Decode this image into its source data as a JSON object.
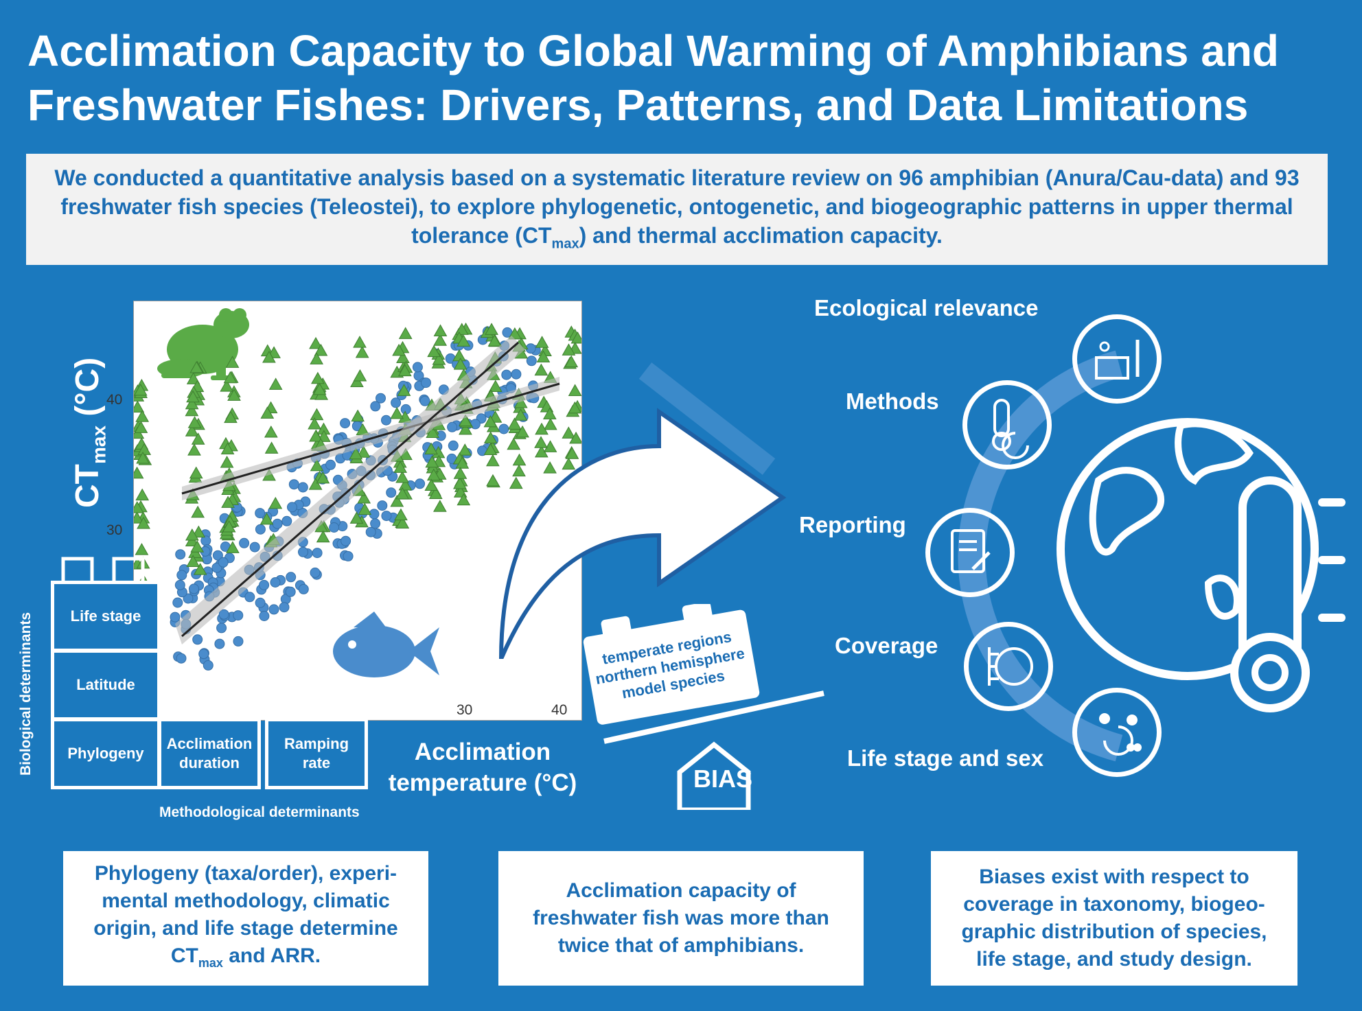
{
  "title": "Acclimation Capacity to Global Warming of Amphibians and Freshwater Fishes: Drivers, Patterns, and Data Limitations",
  "summary": {
    "before": "We conducted a quantitative analysis based on a systematic literature review on 96 amphibian (Anura/Cau-data) and 93 freshwater fish species (Teleostei), to explore phylogenetic, ontogenetic, and biogeographic patterns in upper thermal tolerance (CT",
    "sub": "max",
    "after": ") and thermal acclimation capacity."
  },
  "plot": {
    "ylabel_main": "CT",
    "ylabel_sub": "max",
    "ylabel_unit": " (°C)",
    "xlabel": "Acclimation temperature (°C)",
    "yticks": [
      "40",
      "30"
    ],
    "xticks": [
      "30",
      "40"
    ],
    "frog_color": "#5aab47",
    "fish_color": "#4a8ccc"
  },
  "determinants": {
    "biological_title": "Biological determinants",
    "methodological_title": "Methodological determinants",
    "life_stage": "Life stage",
    "latitude": "Latitude",
    "phylogeny": "Phylogeny",
    "acclimation_duration": "Acclimation duration",
    "ramping_rate": "Ramping rate"
  },
  "bias": {
    "label": "BIAS",
    "lines": [
      "temperate regions",
      "northern hemisphere",
      "model species"
    ]
  },
  "limitations": [
    {
      "label": "Ecological relevance",
      "icon": "ecology-thermometer-icon"
    },
    {
      "label": "Methods",
      "icon": "thermometer-clock-icon"
    },
    {
      "label": "Reporting",
      "icon": "document-pen-icon"
    },
    {
      "label": "Coverage",
      "icon": "tree-globe-icon"
    },
    {
      "label": "Life stage and sex",
      "icon": "lifecycle-icon"
    }
  ],
  "findings": [
    {
      "before": "Phylogeny (taxa/order), experi-mental methodology, climatic origin, and life stage determine CT",
      "sub": "max",
      "after": " and ARR."
    },
    {
      "text": "Acclimation capacity of freshwater fish was more than twice that of amphibians."
    },
    {
      "text": "Biases exist with respect to coverage in taxonomy, biogeo-graphic distribution of species, life stage, and study design."
    }
  ],
  "colors": {
    "background": "#1b79be",
    "panel": "#f2f2f2",
    "text_blue": "#1a6cb3"
  }
}
